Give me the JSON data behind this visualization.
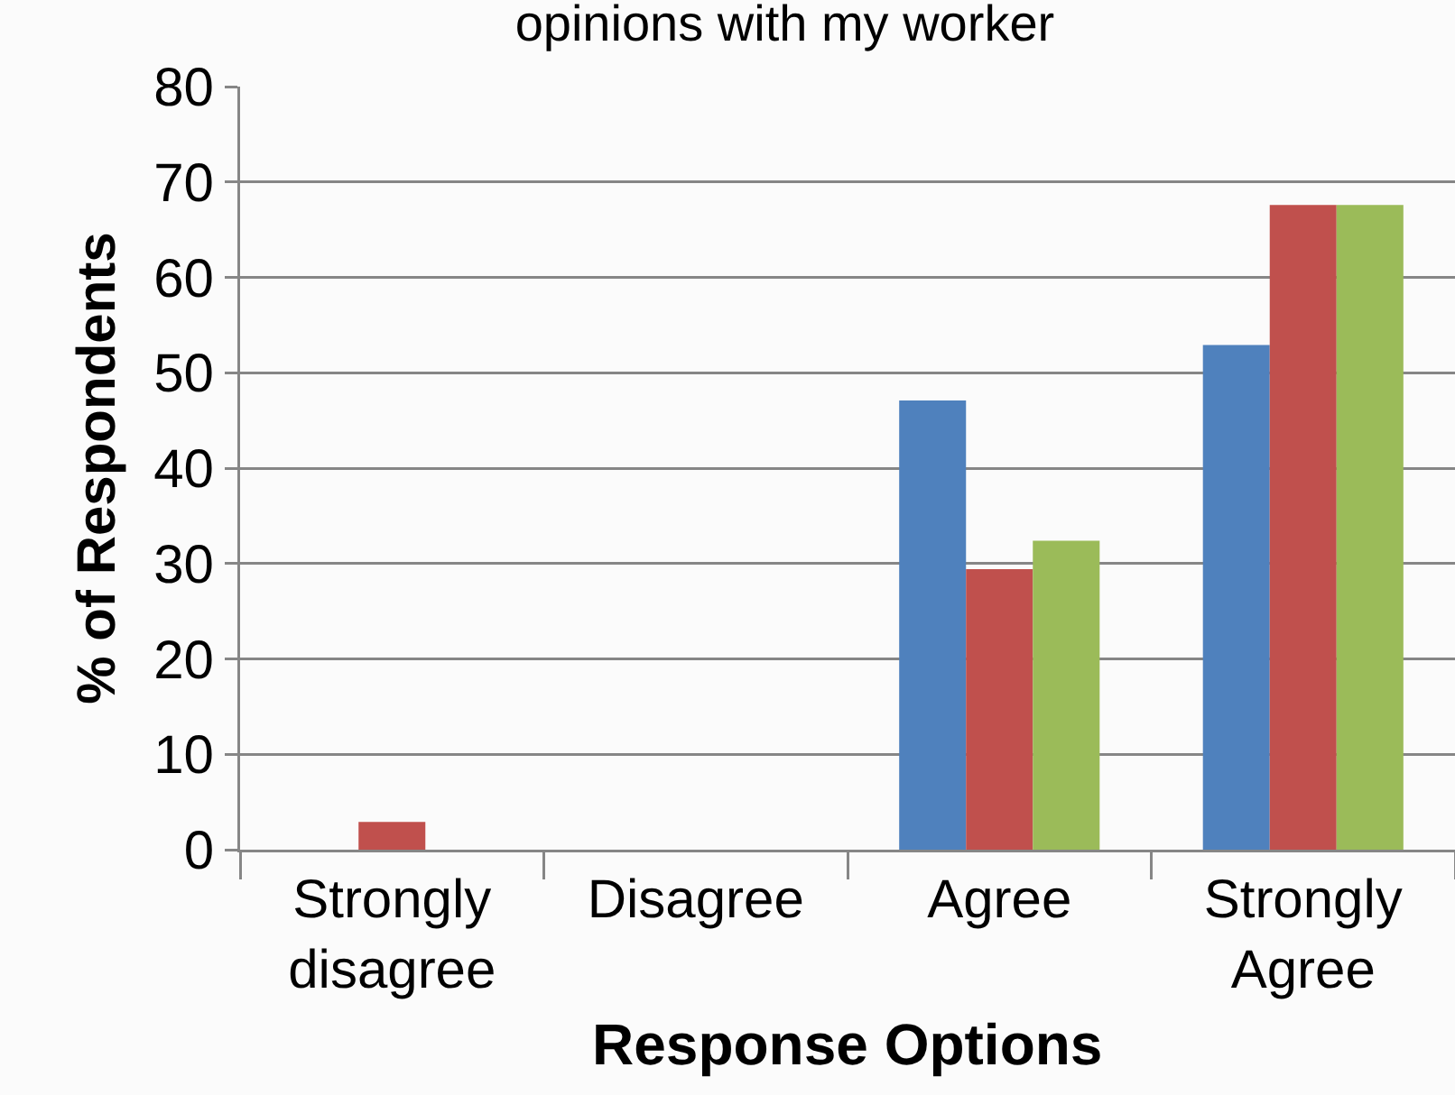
{
  "chart_data": {
    "type": "bar",
    "title": "opinions with my worker",
    "xlabel": "Response Options",
    "ylabel": "% of Respondents",
    "categories": [
      "Strongly disagree",
      "Disagree",
      "Agree",
      "Strongly Agree"
    ],
    "series": [
      {
        "color": "#4f81bd",
        "values": [
          0,
          0,
          47.1,
          52.9
        ]
      },
      {
        "color": "#c0504d",
        "values": [
          2.9,
          0,
          29.4,
          67.6
        ]
      },
      {
        "color": "#9bbb59",
        "values": [
          0,
          0,
          32.4,
          67.6
        ]
      }
    ],
    "ylim": [
      0,
      80
    ],
    "yticks": [
      0,
      10,
      20,
      30,
      40,
      50,
      60,
      70,
      80
    ],
    "grid": "y"
  }
}
